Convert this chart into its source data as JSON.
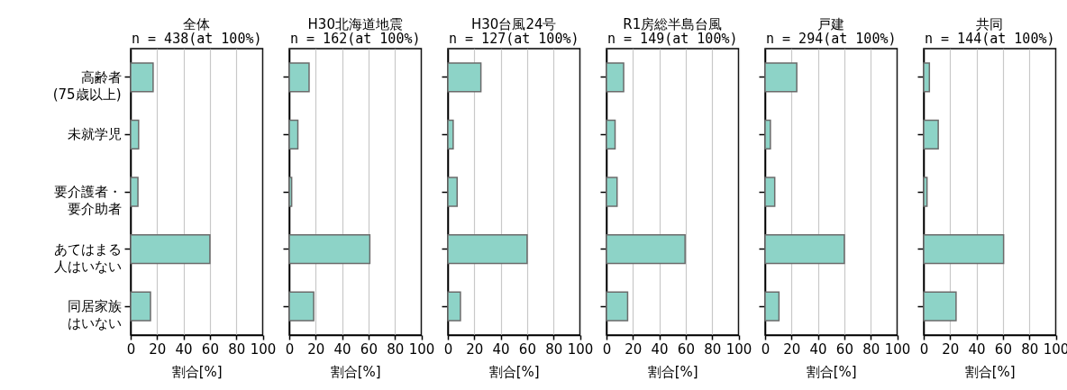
{
  "chart_data": [
    {
      "type": "bar",
      "orientation": "horizontal",
      "title": "全体",
      "subtitle": "n = 438(at 100%)",
      "categories": [
        "高齢者(75歳以上)",
        "未就学児",
        "要介護者・要介助者",
        "あてはまる人はいない",
        "同居家族はいない"
      ],
      "values": [
        17,
        6,
        5.5,
        60,
        15
      ],
      "color": "#8dd3c7",
      "xlabel": "割合[%]",
      "xlim": [
        0,
        100
      ],
      "xticks": [
        0,
        20,
        40,
        60,
        80,
        100
      ],
      "grid": "x"
    },
    {
      "type": "bar",
      "orientation": "horizontal",
      "title": "H30北海道地震",
      "subtitle": "n = 162(at 100%)",
      "categories": [
        "高齢者(75歳以上)",
        "未就学児",
        "要介護者・要介助者",
        "あてはまる人はいない",
        "同居家族はいない"
      ],
      "values": [
        15,
        6.5,
        1.8,
        61,
        18.5
      ],
      "color": "#8dd3c7",
      "xlabel": "割合[%]",
      "xlim": [
        0,
        100
      ],
      "xticks": [
        0,
        20,
        40,
        60,
        80,
        100
      ],
      "grid": "x",
      "tick_labels": "x"
    },
    {
      "type": "bar",
      "orientation": "horizontal",
      "title": "H30台風24号",
      "subtitle": "n = 127(at 100%)",
      "categories": [
        "高齢者(75歳以上)",
        "未就学児",
        "要介護者・要介助者",
        "あてはまる人はいない",
        "同居家族はいない"
      ],
      "values": [
        25,
        4,
        7,
        60,
        9.5
      ],
      "color": "#8dd3c7",
      "xlabel": "割合[%]",
      "xlim": [
        0,
        100
      ],
      "xticks": [
        0,
        20,
        40,
        60,
        80,
        100
      ],
      "grid": "x",
      "tick_labels": "x"
    },
    {
      "type": "bar",
      "orientation": "horizontal",
      "title": "R1房総半島台風",
      "subtitle": "n = 149(at 100%)",
      "categories": [
        "高齢者(75歳以上)",
        "未就学児",
        "要介護者・要介助者",
        "あてはまる人はいない",
        "同居家族はいない"
      ],
      "values": [
        13,
        6.5,
        8,
        59.5,
        16
      ],
      "color": "#8dd3c7",
      "xlabel": "割合[%]",
      "xlim": [
        0,
        100
      ],
      "xticks": [
        0,
        20,
        40,
        60,
        80,
        100
      ],
      "grid": "x",
      "tick_labels": "x"
    },
    {
      "type": "bar",
      "orientation": "horizontal",
      "title": "戸建",
      "subtitle": "n = 294(at 100%)",
      "categories": [
        "高齢者(75歳以上)",
        "未就学児",
        "要介護者・要介助者",
        "あてはまる人はいない",
        "同居家族はいない"
      ],
      "values": [
        24,
        4,
        7.3,
        60,
        10.5
      ],
      "color": "#8dd3c7",
      "xlabel": "割合[%]",
      "xlim": [
        0,
        100
      ],
      "xticks": [
        0,
        20,
        40,
        60,
        80,
        100
      ],
      "grid": "x",
      "tick_labels": "x"
    },
    {
      "type": "bar",
      "orientation": "horizontal",
      "title": "共同",
      "subtitle": "n = 144(at 100%)",
      "categories": [
        "高齢者(75歳以上)",
        "未就学児",
        "要介護者・要介助者",
        "あてはまる人はいない",
        "同居家族はいない"
      ],
      "values": [
        4.3,
        11,
        2.5,
        60.5,
        24.5
      ],
      "color": "#8dd3c7",
      "xlabel": "割合[%]",
      "xlim": [
        0,
        100
      ],
      "xticks": [
        0,
        20,
        40,
        60,
        80,
        100
      ],
      "grid": "x",
      "tick_labels": "x"
    }
  ]
}
